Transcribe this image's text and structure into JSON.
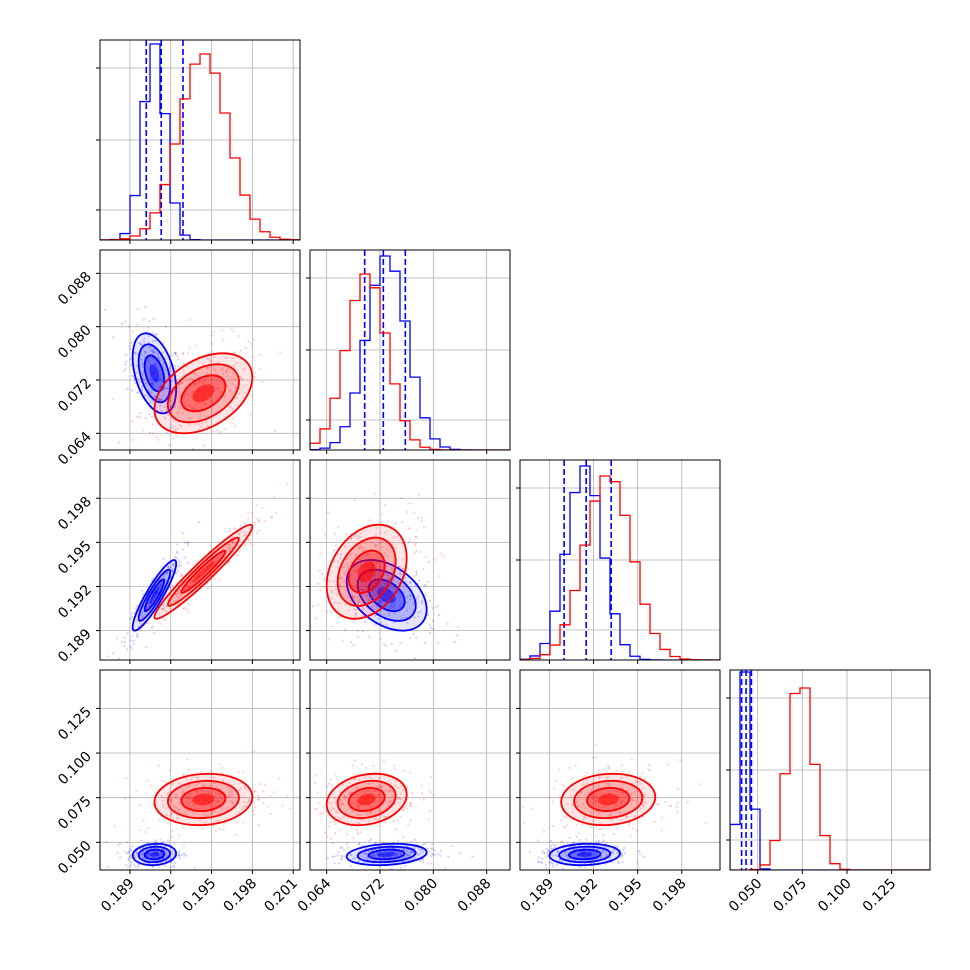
{
  "chart_data": {
    "type": "corner",
    "title": "",
    "parameters": [
      {
        "ticks": [
          "0.189",
          "0.192",
          "0.195",
          "0.198",
          "0.201"
        ],
        "range": [
          0.1868,
          0.2015
        ]
      },
      {
        "ticks": [
          "0.064",
          "0.072",
          "0.080",
          "0.088"
        ],
        "range": [
          0.0615,
          0.0915
        ]
      },
      {
        "ticks": [
          "0.189",
          "0.192",
          "0.195",
          "0.198"
        ],
        "range": [
          0.187,
          0.2006
        ]
      },
      {
        "ticks": [
          "0.050",
          "0.075",
          "0.100",
          "0.125"
        ],
        "range": [
          0.0345,
          0.1465
        ]
      }
    ],
    "series": [
      {
        "color": "#0000ff",
        "means": [
          0.1908,
          0.073,
          0.1914,
          0.0432
        ],
        "stds": [
          0.0008,
          0.003,
          0.0012,
          0.003
        ],
        "corr": [
          [
            1,
            -0.4,
            0.9,
            0.1
          ],
          [
            -0.4,
            1,
            -0.4,
            0.2
          ],
          [
            0.9,
            -0.4,
            1,
            0.1
          ],
          [
            0.1,
            0.2,
            0.1,
            1
          ]
        ],
        "quantiles": [
          [
            0.1902,
            0.1913,
            0.1929
          ],
          [
            0.0697,
            0.0725,
            0.0758
          ],
          [
            0.19,
            0.1915,
            0.1932
          ],
          [
            0.041,
            0.0435,
            0.0465
          ]
        ],
        "hist_peaks": [
          0.98,
          0.97,
          0.97,
          0.99
        ]
      },
      {
        "color": "#ff0000",
        "means": [
          0.1944,
          0.07,
          0.193,
          0.074
        ],
        "stds": [
          0.0018,
          0.003,
          0.0016,
          0.0072
        ],
        "corr": [
          [
            1,
            0.4,
            0.96,
            0.1
          ],
          [
            0.4,
            1,
            0.3,
            0.2
          ],
          [
            0.96,
            0.3,
            1,
            0.1
          ],
          [
            0.1,
            0.2,
            0.1,
            1
          ]
        ],
        "hist_peaks": [
          0.93,
          0.88,
          0.92,
          0.91
        ]
      }
    ]
  }
}
